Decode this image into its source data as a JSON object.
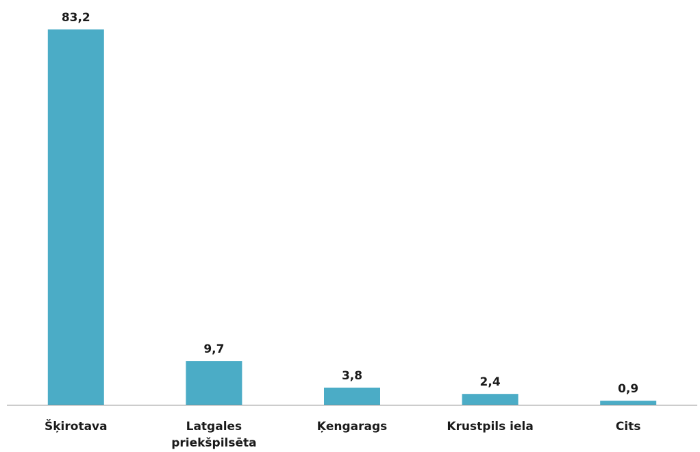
{
  "chart_data": {
    "type": "bar",
    "categories": [
      "Šķirotava",
      "Latgales priekšpilsēta",
      "Ķengarags",
      "Krustpils iela",
      "Cits"
    ],
    "category_lines": [
      [
        "Šķirotava"
      ],
      [
        "Latgales",
        "priekšpilsēta"
      ],
      [
        "Ķengarags"
      ],
      [
        "Krustpils iela"
      ],
      [
        "Cits"
      ]
    ],
    "values": [
      83.2,
      9.7,
      3.8,
      2.4,
      0.9
    ],
    "value_labels": [
      "83,2",
      "9,7",
      "3,8",
      "2,4",
      "0,9"
    ],
    "title": "",
    "xlabel": "",
    "ylabel": "",
    "ylim": [
      0,
      83.2
    ],
    "grid": false,
    "legend": "none",
    "colors": {
      "bar": "#4bacc6",
      "axis": "#7f7f7f",
      "text": "#1a1a1a"
    }
  }
}
